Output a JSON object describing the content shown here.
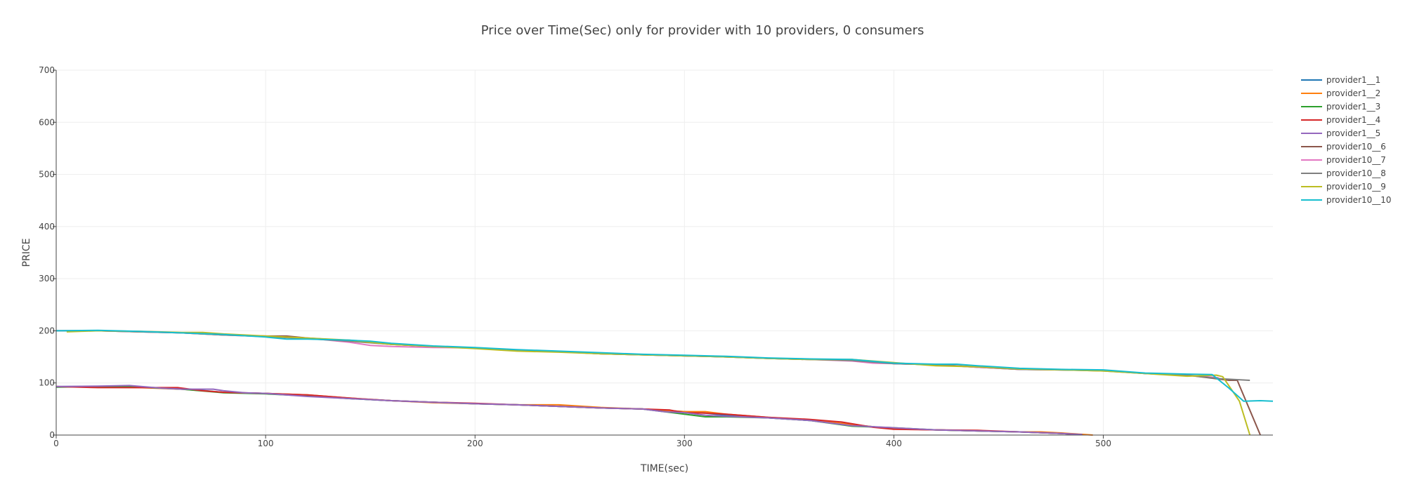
{
  "chart_data": {
    "type": "line",
    "title": "Price over Time(Sec) only for provider with 10 providers, 0 consumers",
    "xlabel": "TIME(sec)",
    "ylabel": "PRICE",
    "xlim": [
      0,
      581
    ],
    "ylim": [
      0,
      700
    ],
    "xticks": [
      0,
      100,
      200,
      300,
      400,
      500
    ],
    "yticks": [
      0,
      100,
      200,
      300,
      400,
      500,
      600,
      700
    ],
    "grid": true,
    "legend_position": "top-right",
    "series": [
      {
        "name": "provider1__1",
        "color": "#1f77b4",
        "points": [
          [
            0,
            93
          ],
          [
            20,
            93
          ],
          [
            40,
            92
          ],
          [
            60,
            89
          ],
          [
            80,
            82
          ],
          [
            100,
            80
          ],
          [
            120,
            76
          ],
          [
            140,
            70
          ],
          [
            160,
            66
          ],
          [
            180,
            63
          ],
          [
            200,
            60
          ],
          [
            220,
            58
          ],
          [
            240,
            55
          ],
          [
            260,
            52
          ],
          [
            280,
            50
          ],
          [
            300,
            45
          ],
          [
            310,
            42
          ],
          [
            320,
            38
          ],
          [
            340,
            33
          ],
          [
            360,
            28
          ],
          [
            380,
            20
          ],
          [
            400,
            12
          ],
          [
            420,
            10
          ],
          [
            440,
            8
          ],
          [
            460,
            6
          ],
          [
            480,
            3
          ],
          [
            490,
            1
          ]
        ]
      },
      {
        "name": "provider1__2",
        "color": "#ff7f0e",
        "points": [
          [
            0,
            93
          ],
          [
            20,
            92
          ],
          [
            40,
            91
          ],
          [
            60,
            88
          ],
          [
            80,
            82
          ],
          [
            100,
            80
          ],
          [
            120,
            77
          ],
          [
            140,
            71
          ],
          [
            160,
            66
          ],
          [
            180,
            62
          ],
          [
            200,
            60
          ],
          [
            220,
            58
          ],
          [
            240,
            58
          ],
          [
            260,
            53
          ],
          [
            280,
            50
          ],
          [
            300,
            45
          ],
          [
            310,
            45
          ],
          [
            320,
            40
          ],
          [
            340,
            34
          ],
          [
            360,
            29
          ],
          [
            380,
            20
          ],
          [
            400,
            12
          ],
          [
            420,
            10
          ],
          [
            440,
            8
          ],
          [
            460,
            6
          ],
          [
            470,
            6
          ],
          [
            480,
            4
          ],
          [
            495,
            0
          ]
        ]
      },
      {
        "name": "provider1__3",
        "color": "#2ca02c",
        "points": [
          [
            0,
            92
          ],
          [
            20,
            93
          ],
          [
            40,
            92
          ],
          [
            60,
            88
          ],
          [
            80,
            81
          ],
          [
            100,
            79
          ],
          [
            120,
            75
          ],
          [
            140,
            70
          ],
          [
            160,
            66
          ],
          [
            180,
            63
          ],
          [
            200,
            60
          ],
          [
            220,
            58
          ],
          [
            240,
            55
          ],
          [
            260,
            52
          ],
          [
            280,
            50
          ],
          [
            300,
            40
          ],
          [
            310,
            35
          ],
          [
            320,
            35
          ],
          [
            340,
            33
          ],
          [
            360,
            28
          ],
          [
            380,
            17
          ],
          [
            400,
            14
          ],
          [
            420,
            10
          ],
          [
            440,
            8
          ],
          [
            460,
            6
          ],
          [
            480,
            3
          ],
          [
            490,
            1
          ]
        ]
      },
      {
        "name": "provider1__4",
        "color": "#d62728",
        "points": [
          [
            0,
            93
          ],
          [
            20,
            91
          ],
          [
            40,
            91
          ],
          [
            58,
            91
          ],
          [
            70,
            85
          ],
          [
            80,
            82
          ],
          [
            100,
            80
          ],
          [
            120,
            77
          ],
          [
            140,
            71
          ],
          [
            160,
            66
          ],
          [
            180,
            63
          ],
          [
            200,
            61
          ],
          [
            220,
            58
          ],
          [
            240,
            55
          ],
          [
            260,
            52
          ],
          [
            280,
            50
          ],
          [
            293,
            48
          ],
          [
            300,
            43
          ],
          [
            310,
            42
          ],
          [
            320,
            40
          ],
          [
            340,
            34
          ],
          [
            360,
            30
          ],
          [
            375,
            25
          ],
          [
            390,
            15
          ],
          [
            400,
            11
          ],
          [
            420,
            10
          ],
          [
            440,
            9
          ],
          [
            460,
            6
          ],
          [
            480,
            3
          ],
          [
            490,
            1
          ]
        ]
      },
      {
        "name": "provider1__5",
        "color": "#9467bd",
        "points": [
          [
            0,
            93
          ],
          [
            20,
            94
          ],
          [
            35,
            95
          ],
          [
            50,
            90
          ],
          [
            60,
            88
          ],
          [
            75,
            88
          ],
          [
            80,
            85
          ],
          [
            90,
            81
          ],
          [
            100,
            80
          ],
          [
            120,
            74
          ],
          [
            140,
            70
          ],
          [
            160,
            66
          ],
          [
            180,
            63
          ],
          [
            200,
            60
          ],
          [
            220,
            58
          ],
          [
            240,
            55
          ],
          [
            260,
            52
          ],
          [
            280,
            50
          ],
          [
            290,
            45
          ],
          [
            300,
            43
          ],
          [
            310,
            38
          ],
          [
            320,
            36
          ],
          [
            340,
            33
          ],
          [
            360,
            28
          ],
          [
            380,
            18
          ],
          [
            400,
            14
          ],
          [
            420,
            10
          ],
          [
            440,
            8
          ],
          [
            460,
            6
          ],
          [
            480,
            3
          ],
          [
            490,
            1
          ]
        ]
      },
      {
        "name": "provider10__6",
        "color": "#8c564b",
        "points": [
          [
            0,
            200
          ],
          [
            20,
            200
          ],
          [
            40,
            198
          ],
          [
            60,
            196
          ],
          [
            80,
            192
          ],
          [
            100,
            190
          ],
          [
            110,
            190
          ],
          [
            120,
            186
          ],
          [
            140,
            181
          ],
          [
            160,
            174
          ],
          [
            180,
            170
          ],
          [
            200,
            167
          ],
          [
            220,
            163
          ],
          [
            240,
            160
          ],
          [
            260,
            156
          ],
          [
            280,
            154
          ],
          [
            300,
            152
          ],
          [
            320,
            150
          ],
          [
            340,
            147
          ],
          [
            360,
            145
          ],
          [
            380,
            144
          ],
          [
            400,
            137
          ],
          [
            420,
            135
          ],
          [
            440,
            130
          ],
          [
            460,
            126
          ],
          [
            480,
            125
          ],
          [
            500,
            124
          ],
          [
            520,
            118
          ],
          [
            540,
            115
          ],
          [
            550,
            110
          ],
          [
            560,
            105
          ],
          [
            564,
            105
          ],
          [
            565,
            95
          ],
          [
            575,
            0
          ]
        ]
      },
      {
        "name": "provider10__7",
        "color": "#e377c2",
        "points": [
          [
            0,
            200
          ],
          [
            20,
            200
          ],
          [
            40,
            198
          ],
          [
            60,
            196
          ],
          [
            80,
            192
          ],
          [
            100,
            189
          ],
          [
            120,
            186
          ],
          [
            140,
            178
          ],
          [
            150,
            172
          ],
          [
            160,
            170
          ],
          [
            180,
            168
          ],
          [
            200,
            167
          ],
          [
            220,
            163
          ],
          [
            240,
            160
          ],
          [
            260,
            156
          ],
          [
            280,
            154
          ],
          [
            300,
            152
          ],
          [
            320,
            150
          ],
          [
            340,
            147
          ],
          [
            360,
            145
          ],
          [
            380,
            142
          ],
          [
            390,
            138
          ],
          [
            400,
            137
          ],
          [
            420,
            135
          ],
          [
            440,
            130
          ],
          [
            460,
            126
          ],
          [
            480,
            125
          ],
          [
            500,
            124
          ],
          [
            520,
            118
          ],
          [
            540,
            115
          ],
          [
            555,
            110
          ]
        ]
      },
      {
        "name": "provider10__8",
        "color": "#7f7f7f",
        "points": [
          [
            0,
            200
          ],
          [
            20,
            200
          ],
          [
            40,
            198
          ],
          [
            60,
            196
          ],
          [
            80,
            192
          ],
          [
            100,
            189
          ],
          [
            120,
            185
          ],
          [
            140,
            180
          ],
          [
            160,
            174
          ],
          [
            180,
            170
          ],
          [
            200,
            167
          ],
          [
            220,
            163
          ],
          [
            240,
            160
          ],
          [
            260,
            156
          ],
          [
            280,
            154
          ],
          [
            300,
            152
          ],
          [
            320,
            150
          ],
          [
            340,
            147
          ],
          [
            360,
            145
          ],
          [
            380,
            143
          ],
          [
            400,
            137
          ],
          [
            420,
            135
          ],
          [
            440,
            131
          ],
          [
            460,
            126
          ],
          [
            480,
            125
          ],
          [
            500,
            123
          ],
          [
            520,
            118
          ],
          [
            540,
            115
          ],
          [
            556,
            108
          ],
          [
            570,
            105
          ]
        ]
      },
      {
        "name": "provider10__9",
        "color": "#bcbd22",
        "points": [
          [
            5,
            198
          ],
          [
            20,
            200
          ],
          [
            40,
            199
          ],
          [
            60,
            197
          ],
          [
            70,
            197
          ],
          [
            80,
            194
          ],
          [
            100,
            190
          ],
          [
            120,
            186
          ],
          [
            140,
            182
          ],
          [
            160,
            174
          ],
          [
            180,
            170
          ],
          [
            200,
            166
          ],
          [
            220,
            161
          ],
          [
            240,
            159
          ],
          [
            260,
            156
          ],
          [
            280,
            154
          ],
          [
            300,
            152
          ],
          [
            320,
            150
          ],
          [
            340,
            147
          ],
          [
            360,
            145
          ],
          [
            380,
            145
          ],
          [
            400,
            139
          ],
          [
            420,
            133
          ],
          [
            440,
            131
          ],
          [
            460,
            127
          ],
          [
            480,
            125
          ],
          [
            500,
            123
          ],
          [
            520,
            118
          ],
          [
            540,
            113
          ],
          [
            554,
            115
          ],
          [
            557,
            112
          ],
          [
            565,
            65
          ],
          [
            570,
            0
          ]
        ]
      },
      {
        "name": "provider10__10",
        "color": "#17becf",
        "points": [
          [
            0,
            200
          ],
          [
            20,
            201
          ],
          [
            40,
            199
          ],
          [
            60,
            196
          ],
          [
            80,
            193
          ],
          [
            100,
            188
          ],
          [
            110,
            184
          ],
          [
            120,
            184
          ],
          [
            140,
            182
          ],
          [
            150,
            180
          ],
          [
            160,
            176
          ],
          [
            180,
            171
          ],
          [
            200,
            168
          ],
          [
            220,
            164
          ],
          [
            240,
            161
          ],
          [
            260,
            158
          ],
          [
            280,
            155
          ],
          [
            300,
            153
          ],
          [
            320,
            151
          ],
          [
            340,
            148
          ],
          [
            360,
            146
          ],
          [
            380,
            145
          ],
          [
            400,
            138
          ],
          [
            420,
            136
          ],
          [
            430,
            136
          ],
          [
            440,
            133
          ],
          [
            460,
            128
          ],
          [
            480,
            126
          ],
          [
            500,
            125
          ],
          [
            520,
            119
          ],
          [
            540,
            117
          ],
          [
            552,
            116
          ],
          [
            560,
            90
          ],
          [
            567,
            65
          ],
          [
            575,
            66
          ],
          [
            581,
            65
          ]
        ]
      }
    ]
  }
}
